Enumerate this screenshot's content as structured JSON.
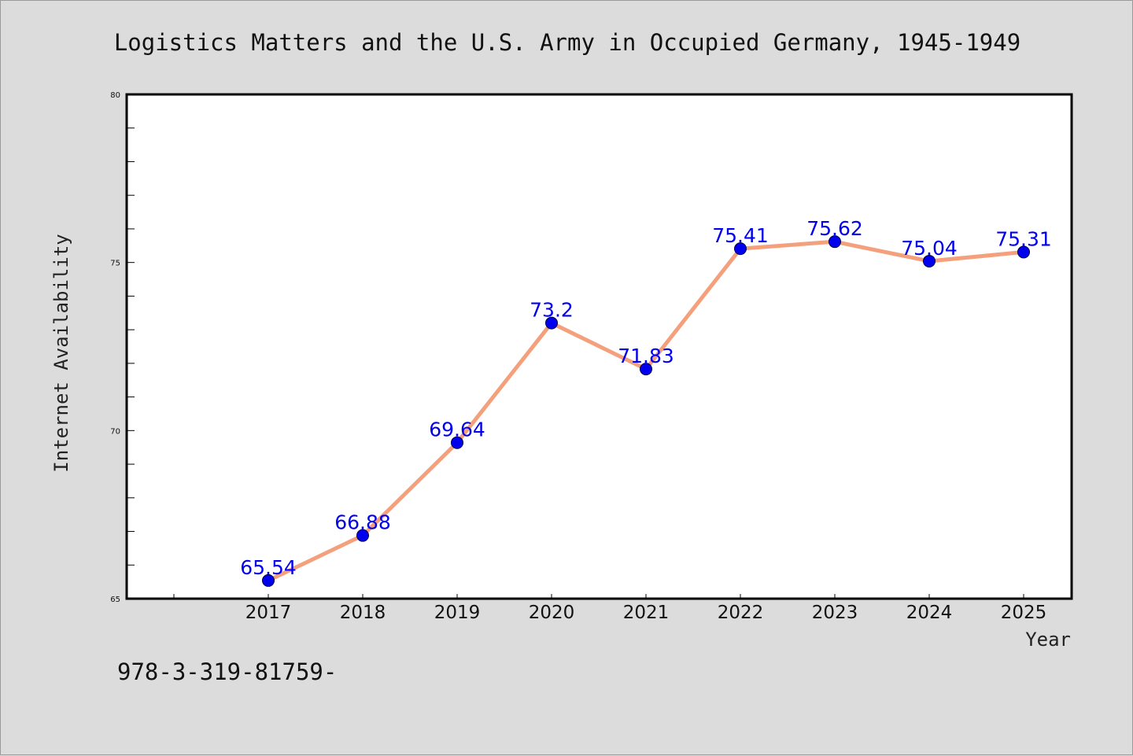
{
  "chart_data": {
    "type": "line",
    "title": "Logistics Matters and the U.S. Army in Occupied Germany, 1945-1949",
    "xlabel": "Year",
    "ylabel": "Internet Availability",
    "categories": [
      "2017",
      "2018",
      "2019",
      "2020",
      "2021",
      "2022",
      "2023",
      "2024",
      "2025"
    ],
    "series": [
      {
        "values": [
          65.54,
          66.88,
          69.64,
          73.2,
          71.83,
          75.41,
          75.62,
          75.04,
          75.31
        ],
        "labels": [
          "65.54",
          "66.88",
          "69.64",
          "73.2",
          "71.83",
          "75.41",
          "75.62",
          "75.04",
          "75.31"
        ],
        "line_color": "#f4a07c",
        "marker_color": "#0000ee"
      }
    ],
    "ylim": [
      65,
      80
    ],
    "y_ticks": [
      "65",
      "70",
      "75",
      "80"
    ],
    "grid": false,
    "background": "#dcdcdc",
    "plot_background": "#ffffff"
  },
  "footer_note": "978-3-319-81759-"
}
